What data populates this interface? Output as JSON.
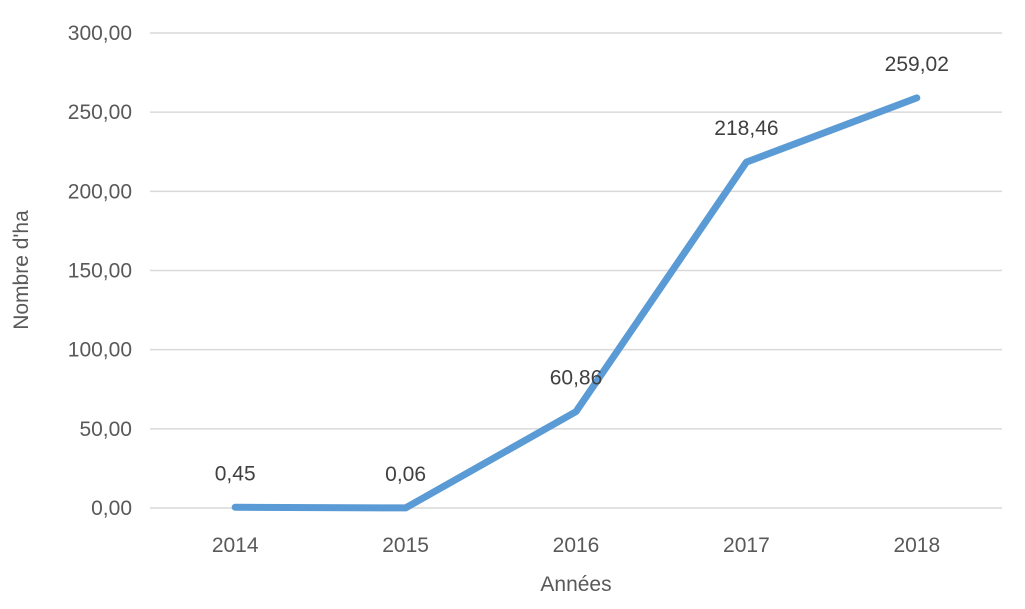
{
  "chart_data": {
    "type": "line",
    "title": "",
    "categories": [
      "2014",
      "2015",
      "2016",
      "2017",
      "2018"
    ],
    "series": [
      {
        "name": "Nombre d'ha",
        "values": [
          0.45,
          0.06,
          60.86,
          218.46,
          259.02
        ],
        "data_labels": [
          "0,45",
          "0,06",
          "60,86",
          "218,46",
          "259,02"
        ],
        "color": "#5B9BD5"
      }
    ],
    "xlabel": "Années",
    "ylabel": "Nombre d'ha",
    "ylim": [
      0,
      300
    ],
    "ytick_step": 50,
    "ytick_labels": [
      "0,00",
      "50,00",
      "100,00",
      "150,00",
      "200,00",
      "250,00",
      "300,00"
    ],
    "grid": "horizontal",
    "legend": "none",
    "colors": {
      "line": "#5B9BD5",
      "gridline": "#D9D9D9",
      "text": "#595959",
      "data_label_text": "#404040",
      "background": "#FFFFFF"
    }
  }
}
